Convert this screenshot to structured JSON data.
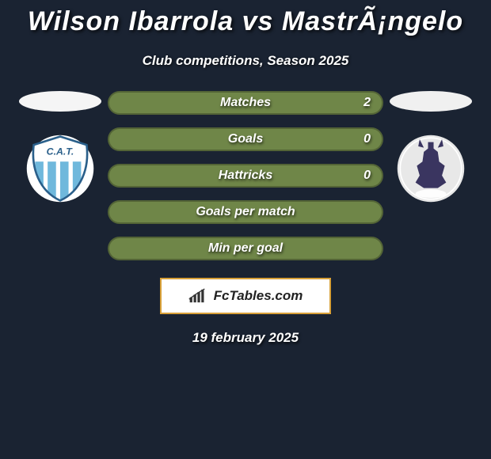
{
  "background_color": "#1a2332",
  "text_color": "#ffffff",
  "title": "Wilson Ibarrola vs MastrÃ¡ngelo",
  "title_fontsize": 34,
  "subtitle": "Club competitions, Season 2025",
  "subtitle_fontsize": 17,
  "left_oval_color": "#f5f5f5",
  "right_oval_color": "#f0f0f0",
  "left_crest": {
    "bg": "#ffffff",
    "stripes": "#6fb8dc",
    "outline": "#2a5f8a",
    "letters": "C.A.T."
  },
  "right_crest": {
    "bg": "#e8e8e8",
    "accent": "#3a3560"
  },
  "stats": {
    "type": "comparison-pills",
    "pill_border_radius": 16,
    "pill_height": 30,
    "label_fontsize": 16,
    "rows": [
      {
        "label": "Matches",
        "value": "2",
        "fill": "#6f8648"
      },
      {
        "label": "Goals",
        "value": "0",
        "fill": "#6f8648"
      },
      {
        "label": "Hattricks",
        "value": "0",
        "fill": "#6f8648"
      },
      {
        "label": "Goals per match",
        "value": "",
        "fill": "#6f8648"
      },
      {
        "label": "Min per goal",
        "value": "",
        "fill": "#6f8648"
      }
    ]
  },
  "brand": {
    "box_bg": "#ffffff",
    "box_border": "#d8a038",
    "icon_color": "#333333",
    "text": "FcTables.com",
    "text_color": "#222222"
  },
  "footer_date": "19 february 2025"
}
